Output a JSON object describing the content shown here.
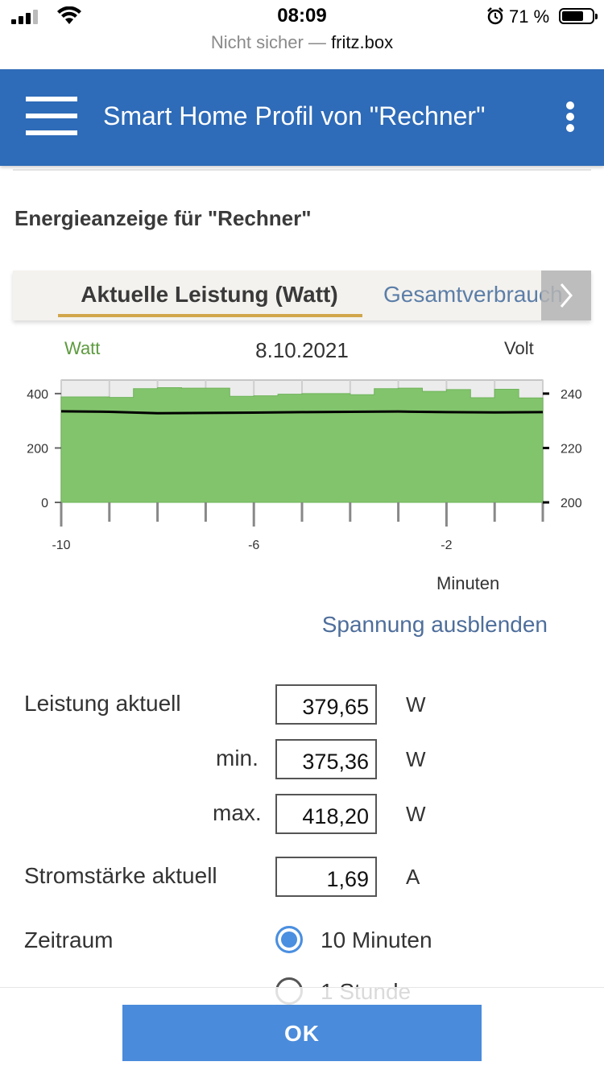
{
  "status_bar": {
    "time": "08:09",
    "battery_text": "71 %",
    "battery_level": 0.71,
    "icons": [
      "cellular-signal-icon",
      "wifi-icon",
      "alarm-icon",
      "battery-icon"
    ]
  },
  "browser": {
    "security_text": "Nicht sicher —",
    "host": "fritz.box"
  },
  "app_bar": {
    "title": "Smart Home Profil von \"Rechner\"",
    "menu_icon": "hamburger-menu-icon",
    "more_icon": "more-vertical-icon",
    "color": "#2e6bb8"
  },
  "section": {
    "title": "Energieanzeige für \"Rechner\""
  },
  "tabs": {
    "items": [
      {
        "label": "Aktuelle Leistung (Watt)",
        "active": true
      },
      {
        "label": "Gesamtverbrauch",
        "active": false
      }
    ],
    "next_icon": "chevron-right-icon",
    "accent": "#d1a64b"
  },
  "chart": {
    "left_axis_label": "Watt",
    "date": "8.10.2021",
    "right_axis_label": "Volt",
    "x_axis_label": "Minuten",
    "toggle_link": "Spannung ausblenden"
  },
  "chart_data": {
    "type": "area",
    "series": [
      {
        "name": "Watt",
        "axis": "left",
        "color": "#82c46c",
        "x": [
          -10,
          -9.5,
          -9,
          -8.5,
          -8,
          -7.5,
          -7,
          -6.5,
          -6,
          -5.5,
          -5,
          -4.5,
          -4,
          -3.5,
          -3,
          -2.5,
          -2,
          -1.5,
          -1,
          -0.5,
          0
        ],
        "values": [
          388,
          388,
          386,
          418,
          422,
          420,
          420,
          390,
          392,
          398,
          400,
          400,
          396,
          418,
          420,
          408,
          415,
          385,
          416,
          384,
          384
        ]
      },
      {
        "name": "Volt",
        "axis": "right",
        "color": "#000000",
        "x": [
          -10,
          -9,
          -8,
          -7,
          -6,
          -5,
          -4,
          -3,
          -2,
          -1,
          0
        ],
        "values": [
          233.5,
          233.3,
          232.8,
          232.9,
          233.0,
          233.2,
          233.3,
          233.4,
          233.2,
          233.1,
          233.2
        ]
      }
    ],
    "xlim": [
      -10,
      0
    ],
    "x_ticks": [
      -10,
      -6,
      -2
    ],
    "ylim_left": [
      0,
      450
    ],
    "y_ticks_left": [
      0,
      200,
      400
    ],
    "ylim_right": [
      200,
      245
    ],
    "y_ticks_right": [
      200,
      220,
      240
    ],
    "grid": true
  },
  "form": {
    "power_label": "Leistung aktuell",
    "power_value": "379,65",
    "min_label": "min.",
    "min_value": "375,36",
    "max_label": "max.",
    "max_value": "418,20",
    "current_label": "Stromstärke aktuell",
    "current_value": "1,69",
    "unit_w": "W",
    "unit_a": "A",
    "period_label": "Zeitraum",
    "period_options": [
      {
        "label": "10 Minuten",
        "checked": true
      },
      {
        "label": "1 Stunde",
        "checked": false
      }
    ]
  },
  "footer": {
    "ok_label": "OK"
  }
}
